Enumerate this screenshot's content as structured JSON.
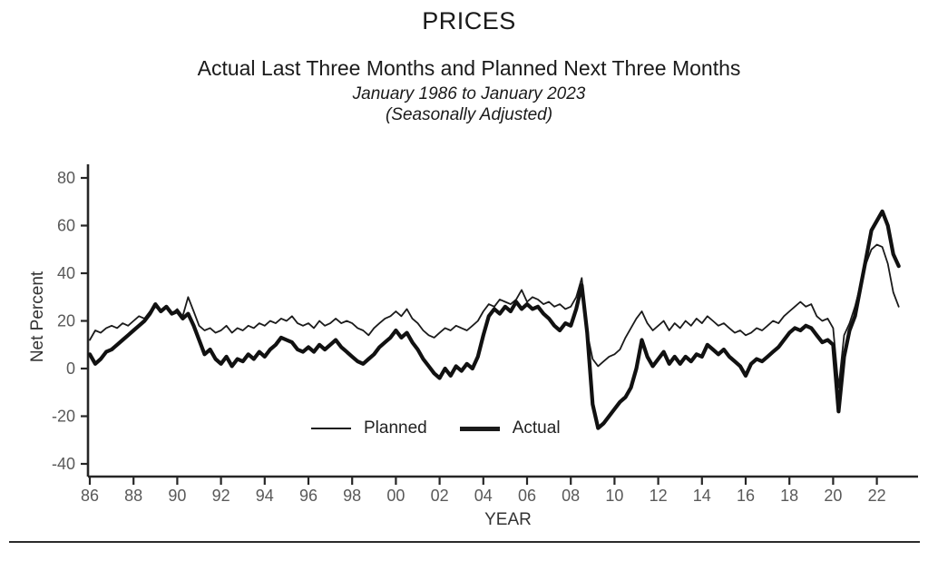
{
  "header": {
    "title": "PRICES",
    "subtitle": "Actual Last Three Months and Planned Next Three Months",
    "date_range": "January 1986 to January 2023",
    "adjustment_note": "(Seasonally Adjusted)"
  },
  "colors": {
    "line": "#1a1a1a",
    "axis": "#262626",
    "tick_text": "#595959",
    "label_text": "#333333"
  },
  "chart_data": {
    "type": "line",
    "title": "PRICES",
    "xlabel": "YEAR",
    "ylabel": "Net Percent",
    "grid": false,
    "legend_position": "inside-bottom-center",
    "ylim": [
      -45,
      85
    ],
    "xlim": [
      1985.9,
      2023.9
    ],
    "y_ticks": [
      80,
      60,
      40,
      20,
      0,
      -20,
      -40
    ],
    "x_tick_years": [
      1986,
      1988,
      1990,
      1992,
      1994,
      1996,
      1998,
      2000,
      2002,
      2004,
      2006,
      2008,
      2010,
      2012,
      2014,
      2016,
      2018,
      2020,
      2022
    ],
    "x_tick_labels": [
      "86",
      "88",
      "90",
      "92",
      "94",
      "96",
      "98",
      "00",
      "02",
      "04",
      "06",
      "08",
      "10",
      "12",
      "14",
      "16",
      "18",
      "20",
      "22"
    ],
    "x_unit": "year (quarterly samples, Jan 1986 - Jan 2023)",
    "x": [
      1986,
      1986.25,
      1986.5,
      1986.75,
      1987,
      1987.25,
      1987.5,
      1987.75,
      1988,
      1988.25,
      1988.5,
      1988.75,
      1989,
      1989.25,
      1989.5,
      1989.75,
      1990,
      1990.25,
      1990.5,
      1990.75,
      1991,
      1991.25,
      1991.5,
      1991.75,
      1992,
      1992.25,
      1992.5,
      1992.75,
      1993,
      1993.25,
      1993.5,
      1993.75,
      1994,
      1994.25,
      1994.5,
      1994.75,
      1995,
      1995.25,
      1995.5,
      1995.75,
      1996,
      1996.25,
      1996.5,
      1996.75,
      1997,
      1997.25,
      1997.5,
      1997.75,
      1998,
      1998.25,
      1998.5,
      1998.75,
      1999,
      1999.25,
      1999.5,
      1999.75,
      2000,
      2000.25,
      2000.5,
      2000.75,
      2001,
      2001.25,
      2001.5,
      2001.75,
      2002,
      2002.25,
      2002.5,
      2002.75,
      2003,
      2003.25,
      2003.5,
      2003.75,
      2004,
      2004.25,
      2004.5,
      2004.75,
      2005,
      2005.25,
      2005.5,
      2005.75,
      2006,
      2006.25,
      2006.5,
      2006.75,
      2007,
      2007.25,
      2007.5,
      2007.75,
      2008,
      2008.25,
      2008.5,
      2008.75,
      2009,
      2009.25,
      2009.5,
      2009.75,
      2010,
      2010.25,
      2010.5,
      2010.75,
      2011,
      2011.25,
      2011.5,
      2011.75,
      2012,
      2012.25,
      2012.5,
      2012.75,
      2013,
      2013.25,
      2013.5,
      2013.75,
      2014,
      2014.25,
      2014.5,
      2014.75,
      2015,
      2015.25,
      2015.5,
      2015.75,
      2016,
      2016.25,
      2016.5,
      2016.75,
      2017,
      2017.25,
      2017.5,
      2017.75,
      2018,
      2018.25,
      2018.5,
      2018.75,
      2019,
      2019.25,
      2019.5,
      2019.75,
      2020,
      2020.25,
      2020.5,
      2020.75,
      2021,
      2021.25,
      2021.5,
      2021.75,
      2022,
      2022.25,
      2022.5,
      2022.75,
      2023
    ],
    "series": [
      {
        "name": "Planned",
        "style": "thin",
        "stroke_width": 1.8,
        "color": "#1a1a1a",
        "values": [
          12,
          16,
          15,
          17,
          18,
          17,
          19,
          18,
          20,
          22,
          21,
          24,
          26,
          24,
          26,
          23,
          25,
          22,
          30,
          24,
          18,
          16,
          17,
          15,
          16,
          18,
          15,
          17,
          16,
          18,
          17,
          19,
          18,
          20,
          19,
          21,
          20,
          22,
          19,
          18,
          19,
          17,
          20,
          18,
          19,
          21,
          19,
          20,
          19,
          17,
          16,
          14,
          17,
          19,
          21,
          22,
          24,
          22,
          25,
          21,
          19,
          16,
          14,
          13,
          15,
          17,
          16,
          18,
          17,
          16,
          18,
          20,
          24,
          27,
          26,
          29,
          28,
          27,
          29,
          33,
          28,
          30,
          29,
          27,
          28,
          26,
          27,
          25,
          26,
          30,
          38,
          15,
          4,
          1,
          3,
          5,
          6,
          8,
          13,
          17,
          21,
          24,
          19,
          16,
          18,
          20,
          16,
          19,
          17,
          20,
          18,
          21,
          19,
          22,
          20,
          18,
          19,
          17,
          15,
          16,
          14,
          15,
          17,
          16,
          18,
          20,
          19,
          22,
          24,
          26,
          28,
          26,
          27,
          22,
          20,
          21,
          17,
          -8,
          14,
          19,
          26,
          35,
          44,
          50,
          52,
          51,
          44,
          32,
          26
        ]
      },
      {
        "name": "Actual",
        "style": "thick",
        "stroke_width": 4.2,
        "color": "#111111",
        "values": [
          6,
          2,
          4,
          7,
          8,
          10,
          12,
          14,
          16,
          18,
          20,
          23,
          27,
          24,
          26,
          23,
          24,
          21,
          23,
          18,
          12,
          6,
          8,
          4,
          2,
          5,
          1,
          4,
          3,
          6,
          4,
          7,
          5,
          8,
          10,
          13,
          12,
          11,
          8,
          7,
          9,
          7,
          10,
          8,
          10,
          12,
          9,
          7,
          5,
          3,
          2,
          4,
          6,
          9,
          11,
          13,
          16,
          13,
          15,
          11,
          8,
          4,
          1,
          -2,
          -4,
          0,
          -3,
          1,
          -1,
          2,
          0,
          5,
          14,
          22,
          25,
          23,
          26,
          24,
          28,
          25,
          27,
          25,
          26,
          23,
          21,
          18,
          16,
          19,
          18,
          25,
          35,
          15,
          -15,
          -25,
          -23,
          -20,
          -17,
          -14,
          -12,
          -8,
          0,
          12,
          5,
          1,
          4,
          7,
          2,
          5,
          2,
          5,
          3,
          6,
          5,
          10,
          8,
          6,
          8,
          5,
          3,
          1,
          -3,
          2,
          4,
          3,
          5,
          7,
          9,
          12,
          15,
          17,
          16,
          18,
          17,
          14,
          11,
          12,
          10,
          -18,
          5,
          16,
          22,
          34,
          46,
          58,
          62,
          66,
          60,
          48,
          43
        ]
      }
    ]
  }
}
